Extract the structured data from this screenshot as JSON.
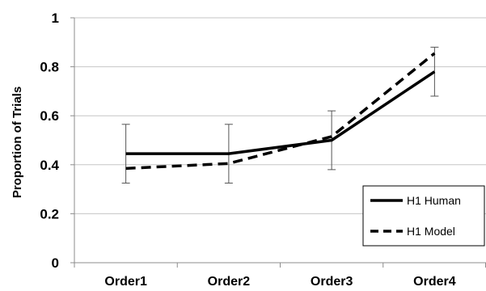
{
  "chart_data": {
    "type": "line",
    "categories": [
      "Order1",
      "Order2",
      "Order3",
      "Order4"
    ],
    "ylabel": "Proportion of Trials",
    "xlabel": "",
    "ylim": [
      0,
      1
    ],
    "yticks": [
      "0",
      "0.2",
      "0.4",
      "0.6",
      "0.8",
      "1"
    ],
    "grid": true,
    "legend_position": "bottom-right",
    "series": [
      {
        "name": "H1 Human",
        "style": "solid",
        "color": "#000000",
        "values": [
          0.445,
          0.445,
          0.5,
          0.78
        ],
        "error_low": [
          0.325,
          0.325,
          0.38,
          0.68
        ],
        "error_high": [
          0.565,
          0.565,
          0.62,
          0.88
        ]
      },
      {
        "name": "H1 Model",
        "style": "dashed",
        "color": "#000000",
        "values": [
          0.385,
          0.405,
          0.515,
          0.855
        ]
      }
    ]
  }
}
